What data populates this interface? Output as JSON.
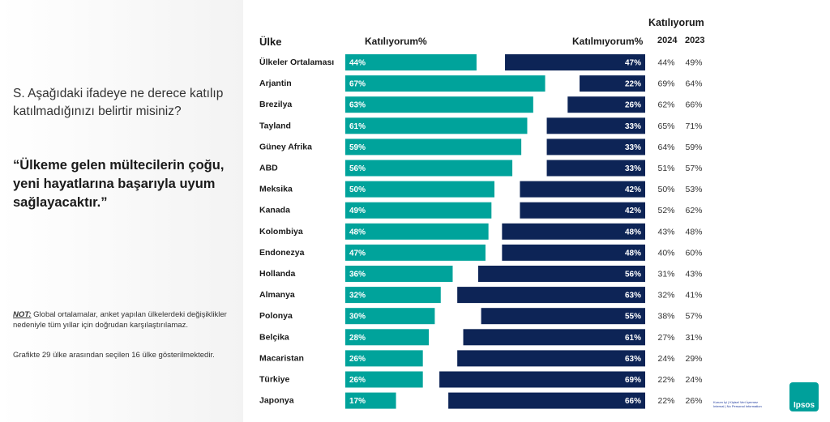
{
  "question": "S. Aşağıdaki ifadeye ne derece katılıp katılmadığınızı belirtir misiniz?",
  "quote": "“Ülkeme gelen mültecilerin çoğu, yeni hayatlarına başarıyla uyum sağlayacaktır.”",
  "note_label": "NOT:",
  "note_text": " Global ortalamalar, anket yapılan ülkelerdeki değişiklikler nedeniyle tüm yıllar için doğrudan karşılaştırılamaz.",
  "note2": "Grafikte 29 ülke arasından seçilen 16 ülke gösterilmektedir.",
  "headers": {
    "country": "Ülke",
    "agree": "Katılıyorum%",
    "disagree": "Katılmıyorum%",
    "agree_group": "Katılıyorum",
    "year_2024": "2024",
    "year_2023": "2023"
  },
  "footer": {
    "line1": "Kurum İçi | Kişisel Veri İçermez",
    "line2": "Internal | No Personal Information",
    "logo": "Ipsos"
  },
  "colors": {
    "agree": "#00a39b",
    "disagree": "#0d2456"
  },
  "chart_data": {
    "type": "bar",
    "categories": [
      "Ülkeler Ortalaması",
      "Arjantin",
      "Brezilya",
      "Tayland",
      "Güney Afrika",
      "ABD",
      "Meksika",
      "Kanada",
      "Kolombiya",
      "Endonezya",
      "Hollanda",
      "Almanya",
      "Polonya",
      "Belçika",
      "Macaristan",
      "Türkiye",
      "Japonya"
    ],
    "series": [
      {
        "name": "Katılıyorum%",
        "values": [
          44,
          67,
          63,
          61,
          59,
          56,
          50,
          49,
          48,
          47,
          36,
          32,
          30,
          28,
          26,
          26,
          17
        ]
      },
      {
        "name": "Katılmıyorum%",
        "values": [
          47,
          22,
          26,
          33,
          33,
          33,
          42,
          42,
          48,
          48,
          56,
          63,
          55,
          61,
          63,
          69,
          66
        ]
      }
    ],
    "agree_2024": [
      "44%",
      "69%",
      "62%",
      "65%",
      "64%",
      "51%",
      "50%",
      "52%",
      "43%",
      "40%",
      "31%",
      "32%",
      "38%",
      "27%",
      "24%",
      "22%",
      "22%"
    ],
    "agree_2023": [
      "49%",
      "64%",
      "66%",
      "71%",
      "59%",
      "57%",
      "53%",
      "62%",
      "48%",
      "60%",
      "43%",
      "41%",
      "57%",
      "31%",
      "29%",
      "24%",
      "26%"
    ]
  }
}
